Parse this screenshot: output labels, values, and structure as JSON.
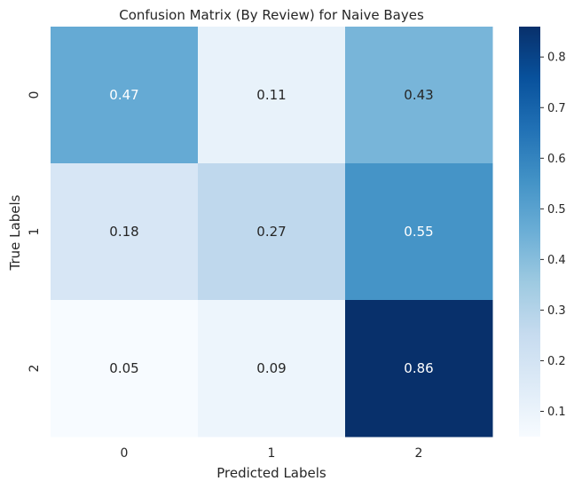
{
  "chart_data": {
    "type": "heatmap",
    "title": "Confusion Matrix (By Review) for Naive Bayes",
    "xlabel": "Predicted Labels",
    "ylabel": "True Labels",
    "x_categories": [
      "0",
      "1",
      "2"
    ],
    "y_categories": [
      "0",
      "1",
      "2"
    ],
    "values": [
      [
        0.47,
        0.11,
        0.43
      ],
      [
        0.18,
        0.27,
        0.55
      ],
      [
        0.05,
        0.09,
        0.86
      ]
    ],
    "colorbar": {
      "colormap": "Blues",
      "range": [
        0.05,
        0.86
      ],
      "ticks": [
        "0.1",
        "0.2",
        "0.3",
        "0.4",
        "0.5",
        "0.6",
        "0.7",
        "0.8"
      ]
    }
  }
}
